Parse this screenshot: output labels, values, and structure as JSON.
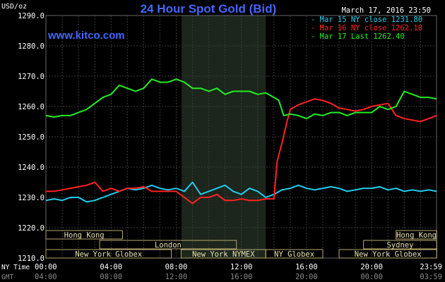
{
  "chart_data": {
    "type": "line",
    "title": "24 Hour Spot Gold (Bid)",
    "website": "www.kitco.com",
    "timestamp": "March 17, 2016 23:50",
    "ylabel": "USD/oz",
    "ylim": [
      1210,
      1290
    ],
    "yticks": [
      "1290.0",
      "1280.0",
      "1270.0",
      "1260.0",
      "1250.0",
      "1240.0",
      "1230.0",
      "1220.0",
      "1210.0"
    ],
    "ytick_values": [
      1290,
      1280,
      1270,
      1260,
      1250,
      1240,
      1230,
      1220,
      1210
    ],
    "x_range_hours": [
      0,
      23.983
    ],
    "xtick_row_labels": [
      "NY Time",
      "GMT"
    ],
    "xticks_ny": [
      "00:00",
      "04:00",
      "08:00",
      "12:00",
      "16:00",
      "20:00",
      "23:59"
    ],
    "xticks_gmt": [
      "04:00",
      "08:00",
      "12:00",
      "16:00",
      "20:00",
      "00:00",
      "03:59"
    ],
    "xtick_hours": [
      0,
      4,
      8,
      12,
      16,
      20,
      23.983
    ],
    "shaded_session": [
      8.33,
      13.5
    ],
    "legend": [
      {
        "label": "Mar 15 NY close 1231.80",
        "color": "#22ccee"
      },
      {
        "label": "Mar 16 NY close 1262.10",
        "color": "#ff2222"
      },
      {
        "label": "Mar 17 Last 1262.40",
        "color": "#22ee22"
      }
    ],
    "legend_position": "top-right",
    "series": [
      {
        "name": "Mar 15 NY close 1231.80",
        "color": "#22ccee",
        "x": [
          0,
          0.5,
          1,
          1.5,
          2,
          2.5,
          3,
          3.5,
          4,
          4.5,
          5,
          5.5,
          6,
          6.5,
          7,
          7.5,
          8,
          8.5,
          9,
          9.5,
          10,
          10.5,
          11,
          11.5,
          12,
          12.5,
          13,
          13.5,
          14,
          14.5,
          15,
          15.5,
          16,
          16.5,
          17,
          17.5,
          18,
          18.5,
          19,
          19.5,
          20,
          20.5,
          21,
          21.5,
          22,
          22.5,
          23,
          23.5,
          24
        ],
        "y": [
          1229,
          1229.5,
          1229,
          1230,
          1230,
          1228.5,
          1229,
          1230,
          1231,
          1232,
          1233,
          1232.5,
          1233,
          1234,
          1233,
          1232.5,
          1233,
          1232,
          1235,
          1231,
          1232,
          1233,
          1234,
          1232,
          1231,
          1233,
          1232,
          1230,
          1231,
          1232.5,
          1233,
          1234,
          1233,
          1232.5,
          1233,
          1233.5,
          1233,
          1232,
          1232.5,
          1233,
          1233,
          1233.5,
          1232.5,
          1233,
          1232,
          1232.5,
          1232,
          1232.5,
          1232
        ]
      },
      {
        "name": "Mar 16 NY close 1262.10",
        "color": "#ff2222",
        "x": [
          0,
          0.5,
          1,
          1.5,
          2,
          2.5,
          3,
          3.5,
          4,
          4.5,
          5,
          5.5,
          6,
          6.5,
          7,
          7.5,
          8,
          8.5,
          9,
          9.5,
          10,
          10.5,
          11,
          11.5,
          12,
          12.5,
          13,
          13.5,
          14,
          14.2,
          14.5,
          14.8,
          15,
          15.5,
          16,
          16.5,
          17,
          17.5,
          18,
          18.5,
          19,
          19.5,
          20,
          20.5,
          21,
          21.5,
          22,
          22.5,
          23,
          23.5,
          24
        ],
        "y": [
          1232,
          1232,
          1232.5,
          1233,
          1233.5,
          1234,
          1235,
          1232,
          1233,
          1232,
          1233,
          1233,
          1233.5,
          1232,
          1232,
          1232,
          1232,
          1230,
          1228,
          1230,
          1230,
          1231,
          1229,
          1229,
          1229.5,
          1229,
          1229,
          1229.5,
          1229.5,
          1242,
          1248,
          1255,
          1259,
          1260.5,
          1261.5,
          1262.5,
          1262,
          1261,
          1259.5,
          1259,
          1258.5,
          1259,
          1260,
          1260.5,
          1261,
          1257,
          1256,
          1255.5,
          1255,
          1256,
          1257
        ]
      },
      {
        "name": "Mar 17 Last 1262.40",
        "color": "#22ee22",
        "x": [
          0,
          0.5,
          1,
          1.5,
          2,
          2.5,
          3,
          3.5,
          4,
          4.5,
          5,
          5.5,
          6,
          6.5,
          7,
          7.5,
          8,
          8.5,
          9,
          9.5,
          10,
          10.5,
          11,
          11.5,
          12,
          12.5,
          13,
          13.5,
          14,
          14.3,
          14.6,
          15,
          15.5,
          16,
          16.5,
          17,
          17.5,
          18,
          18.5,
          19,
          19.5,
          20,
          20.5,
          21,
          21.5,
          22,
          22.5,
          23,
          23.5,
          24
        ],
        "y": [
          1257,
          1256.5,
          1257,
          1257,
          1258,
          1259,
          1261,
          1263,
          1264,
          1267,
          1266,
          1265,
          1266,
          1269,
          1268,
          1268,
          1269,
          1268,
          1266,
          1266,
          1265,
          1266,
          1264,
          1265,
          1265,
          1265,
          1264,
          1264.5,
          1263,
          1262,
          1257,
          1257.5,
          1257,
          1256,
          1257.5,
          1257,
          1258,
          1258,
          1257,
          1258,
          1258,
          1258,
          1260,
          1259,
          1260,
          1265,
          1264,
          1263,
          1263,
          1262.5
        ]
      }
    ],
    "session_bars": [
      {
        "label": "Hong Kong",
        "row": 0,
        "start": 0,
        "end": 4.7
      },
      {
        "label": "Hong Kong",
        "row": 0,
        "start": 21.5,
        "end": 24
      },
      {
        "label": "London",
        "row": 1,
        "start": 3.3,
        "end": 11.7
      },
      {
        "label": "Sydney",
        "row": 1,
        "start": 19.5,
        "end": 24
      },
      {
        "label": "New York Globex",
        "row": 2,
        "start": 0,
        "end": 7.7
      },
      {
        "label": "New York NYMEX",
        "row": 2,
        "start": 8.3,
        "end": 13.5
      },
      {
        "label": "NY Globex",
        "row": 2,
        "start": 13.5,
        "end": 17.0
      },
      {
        "label": "New York Globex",
        "row": 2,
        "start": 18.0,
        "end": 24
      }
    ],
    "grid": true
  }
}
